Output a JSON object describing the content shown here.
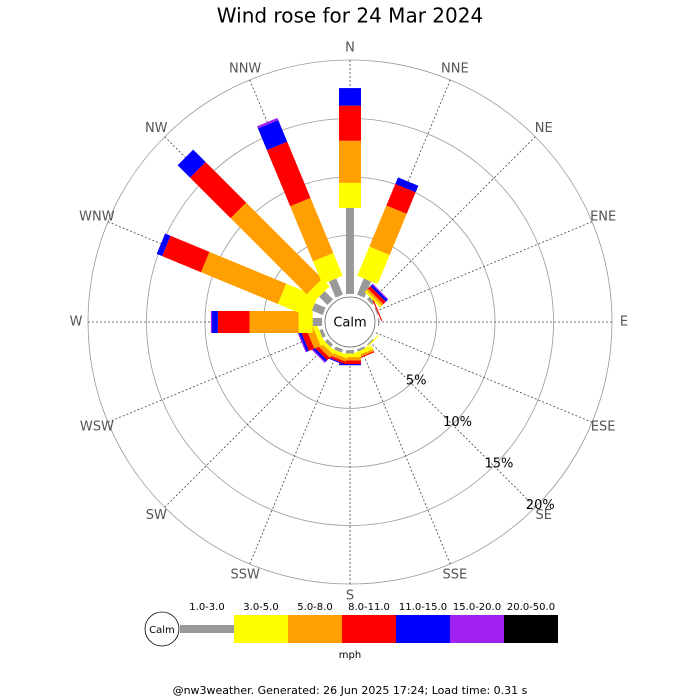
{
  "chart_data": {
    "type": "windrose",
    "title": "Wind rose for 24 Mar 2024",
    "center_label": "Calm",
    "categories": [
      "N",
      "NNE",
      "NE",
      "ENE",
      "E",
      "ESE",
      "SE",
      "SSE",
      "S",
      "SSW",
      "SW",
      "WSW",
      "W",
      "WNW",
      "NW",
      "NNW"
    ],
    "rlim": [
      0,
      20
    ],
    "rticks": [
      {
        "value": 5,
        "label": "5%"
      },
      {
        "value": 10,
        "label": "10%"
      },
      {
        "value": 15,
        "label": "15%"
      },
      {
        "value": 20,
        "label": "20%"
      }
    ],
    "legend_title": "mph",
    "series": [
      {
        "name": "1.0-3.0",
        "color": "#999999",
        "values": [
          7.35,
          1.5,
          0.3,
          0.1,
          0.1,
          0,
          0.1,
          0.2,
          0.3,
          0.3,
          0.3,
          0.3,
          0.8,
          1.0,
          1.0,
          1.5
        ]
      },
      {
        "name": "3.0-5.0",
        "color": "#ffff00",
        "values": [
          2.15,
          2.7,
          0.2,
          0,
          0,
          0,
          0.1,
          0.3,
          0.3,
          0.3,
          0.3,
          0.4,
          1.2,
          2.9,
          0.9,
          2.1
        ]
      },
      {
        "name": "5.0-8.0",
        "color": "#ffa000",
        "values": [
          3.6,
          3.8,
          0.2,
          0,
          0,
          0,
          0,
          0.2,
          0.3,
          0.3,
          0.4,
          0.6,
          4.2,
          7.1,
          9.2,
          5.1
        ]
      },
      {
        "name": "8.0-11.0",
        "color": "#ff0000",
        "values": [
          3.0,
          2.0,
          0.3,
          0.1,
          0,
          0,
          0,
          0.1,
          0.3,
          0.2,
          0.3,
          0.5,
          2.7,
          3.6,
          4.9,
          5.2
        ]
      },
      {
        "name": "11.0-15.0",
        "color": "#0000ff",
        "values": [
          1.5,
          0.6,
          0.2,
          0,
          0,
          0,
          0,
          0,
          0.1,
          0.1,
          0.2,
          0.2,
          0.5,
          0.5,
          1.5,
          2.0
        ]
      },
      {
        "name": "15.0-20.0",
        "color": "#a020f0",
        "values": [
          0,
          0,
          0.1,
          0,
          0,
          0,
          0,
          0,
          0,
          0,
          0.1,
          0.1,
          0.1,
          0,
          0,
          0.2
        ]
      },
      {
        "name": "20.0-50.0",
        "color": "#000000",
        "values": [
          0,
          0,
          0,
          0,
          0,
          0,
          0,
          0,
          0,
          0,
          0,
          0,
          0,
          0,
          0,
          0
        ]
      }
    ],
    "footer": "@nw3weather. Generated: 26 Jun 2025 17:24; Load time: 0.31 s"
  }
}
